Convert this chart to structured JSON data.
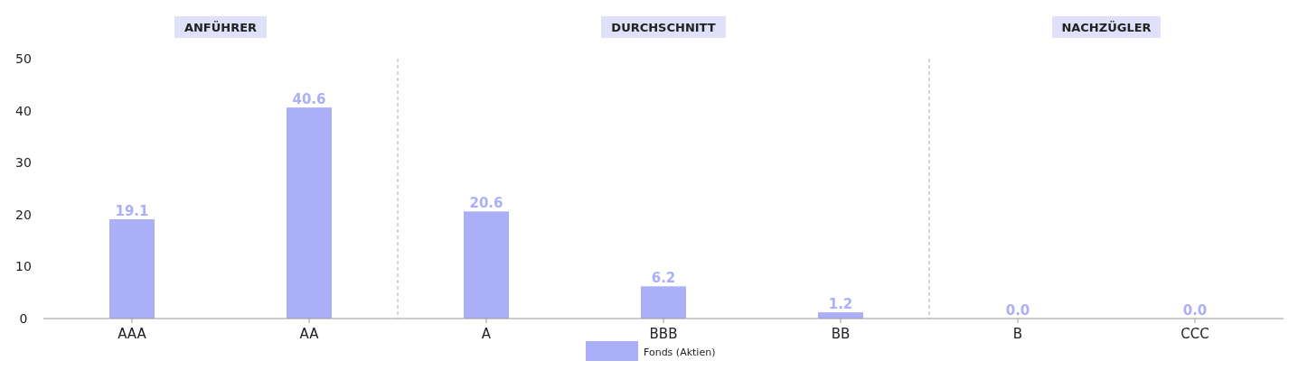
{
  "chart_data": {
    "type": "bar",
    "categories": [
      "AAA",
      "AA",
      "A",
      "BBB",
      "BB",
      "B",
      "CCC"
    ],
    "series": [
      {
        "name": "Fonds (Aktien)",
        "color": "#abaff8",
        "values": [
          19.1,
          40.6,
          20.6,
          6.2,
          1.2,
          0.0,
          0.0
        ],
        "value_labels": [
          "19.1",
          "40.6",
          "20.6",
          "6.2",
          "1.2",
          "0.0",
          "0.0"
        ]
      }
    ],
    "ylim": [
      0,
      50
    ],
    "yticks": [
      0,
      10,
      20,
      30,
      40,
      50
    ],
    "grid": false,
    "data_labels": true,
    "legend": "bottom",
    "annotations": [
      "ANFÜHRER",
      "DURCHSCHNITT",
      "NACHZÜGLER"
    ]
  }
}
